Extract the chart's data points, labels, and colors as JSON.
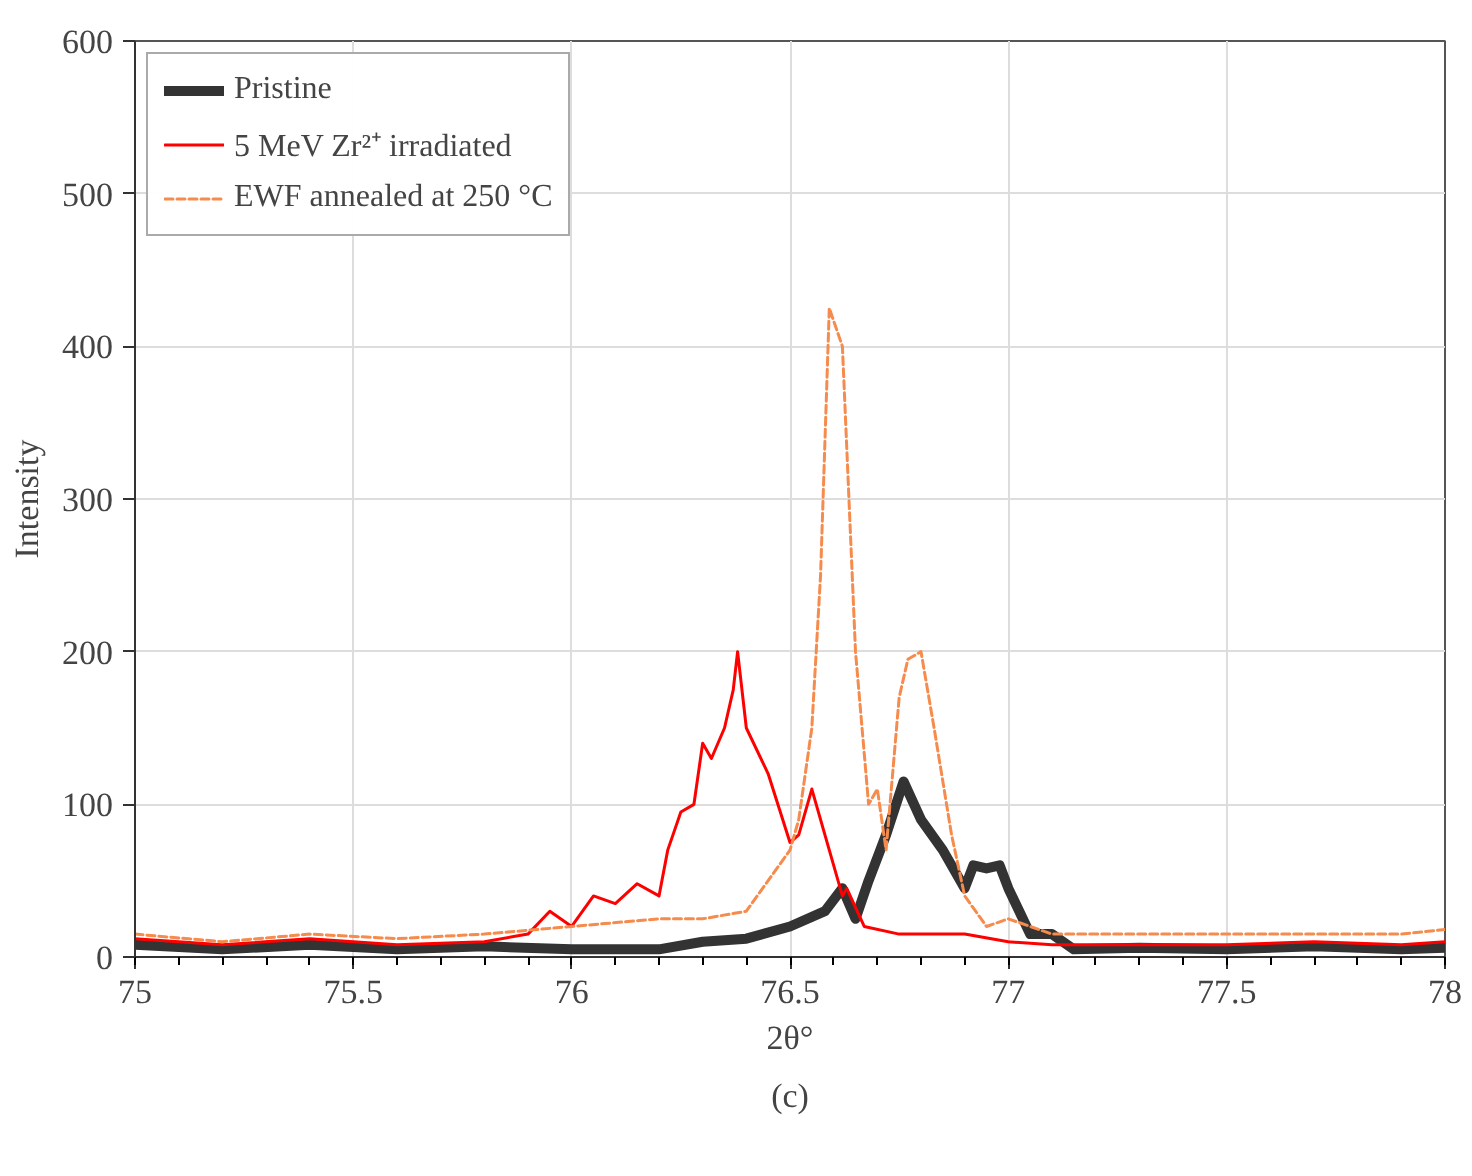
{
  "chart_data": {
    "type": "line",
    "xlabel": "2θ°",
    "ylabel": "Intensity",
    "annotations": [
      "(c)"
    ],
    "xlim": [
      75,
      78
    ],
    "ylim": [
      0,
      600
    ],
    "xticks": [
      75,
      75.5,
      76,
      76.5,
      77,
      77.5,
      78
    ],
    "yticks": [
      0,
      100,
      200,
      300,
      400,
      500,
      600
    ],
    "grid": true,
    "legend": "top left",
    "series": [
      {
        "name": "Pristine",
        "color": "#333333",
        "line_style": "solid",
        "x": [
          75,
          75.2,
          75.4,
          75.6,
          75.8,
          76,
          76.2,
          76.3,
          76.4,
          76.5,
          76.58,
          76.62,
          76.65,
          76.68,
          76.72,
          76.76,
          76.8,
          76.85,
          76.9,
          76.92,
          76.95,
          76.98,
          77,
          77.05,
          77.1,
          77.15,
          77.3,
          77.5,
          77.7,
          77.9,
          78
        ],
        "values": [
          8,
          5,
          8,
          5,
          7,
          5,
          5,
          10,
          12,
          20,
          30,
          45,
          25,
          50,
          80,
          115,
          90,
          70,
          45,
          60,
          58,
          60,
          45,
          15,
          15,
          5,
          6,
          5,
          7,
          5,
          6
        ]
      },
      {
        "name": "5 MeV Zr²⁺ irradiated",
        "color": "#ff0000",
        "line_style": "solid",
        "x": [
          75,
          75.2,
          75.4,
          75.6,
          75.8,
          75.9,
          75.95,
          76,
          76.05,
          76.1,
          76.15,
          76.2,
          76.22,
          76.25,
          76.28,
          76.3,
          76.32,
          76.35,
          76.37,
          76.38,
          76.4,
          76.45,
          76.5,
          76.52,
          76.55,
          76.58,
          76.62,
          76.63,
          76.67,
          76.75,
          76.9,
          77,
          77.1,
          77.3,
          77.5,
          77.7,
          77.9,
          78
        ],
        "values": [
          12,
          8,
          12,
          8,
          10,
          15,
          30,
          20,
          40,
          35,
          48,
          40,
          70,
          95,
          100,
          140,
          130,
          150,
          175,
          200,
          150,
          120,
          75,
          80,
          110,
          80,
          40,
          45,
          20,
          15,
          15,
          10,
          8,
          8,
          8,
          10,
          8,
          10
        ]
      },
      {
        "name": "EWF annealed at 250 °C",
        "color": "#f58b4c",
        "line_style": "dashed",
        "x": [
          75,
          75.2,
          75.4,
          75.6,
          75.8,
          76,
          76.2,
          76.3,
          76.4,
          76.45,
          76.5,
          76.52,
          76.55,
          76.57,
          76.59,
          76.62,
          76.65,
          76.68,
          76.7,
          76.72,
          76.75,
          76.77,
          76.8,
          76.83,
          76.87,
          76.9,
          76.95,
          77,
          77.1,
          77.3,
          77.5,
          77.7,
          77.9,
          78
        ],
        "values": [
          15,
          10,
          15,
          12,
          15,
          20,
          25,
          25,
          30,
          50,
          70,
          90,
          150,
          250,
          425,
          400,
          200,
          100,
          110,
          70,
          170,
          195,
          200,
          150,
          80,
          40,
          20,
          25,
          15,
          15,
          15,
          15,
          15,
          18
        ]
      }
    ]
  }
}
